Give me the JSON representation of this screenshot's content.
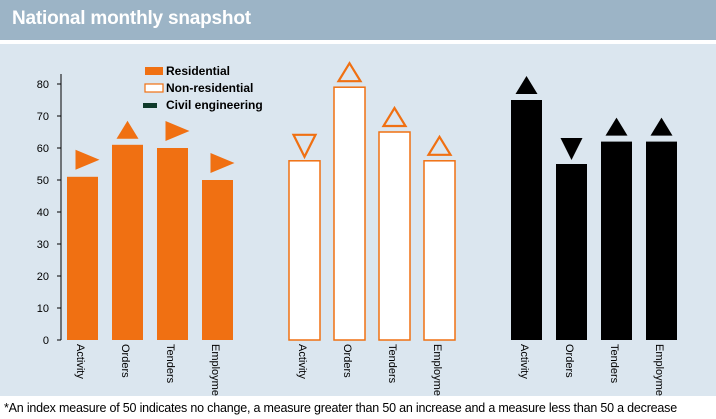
{
  "header": {
    "title": "National monthly snapshot"
  },
  "footnote": "*An index measure of 50 indicates no change, a measure greater than 50 an increase and a measure less than 50 a decrease",
  "colors": {
    "residential": "#f07012",
    "non_residential": "#ffffff",
    "non_residential_outline": "#f07012",
    "civil_engineering": "#000000",
    "civil_engineering_legend": "#0f3a2b",
    "header": "#9cb4c6",
    "panel": "#dbe6ef"
  },
  "chart_data": {
    "type": "bar",
    "categories": [
      "Activity",
      "Orders",
      "Tenders",
      "Employment"
    ],
    "ylim": [
      0,
      80
    ],
    "yticks": [
      0,
      10,
      20,
      30,
      40,
      50,
      60,
      70,
      80
    ],
    "grid": false,
    "legend_position": "top-left",
    "series": [
      {
        "name": "Residential",
        "values": [
          51,
          61,
          60,
          50
        ],
        "indicators": [
          "flat",
          "up",
          "flat",
          "flat"
        ]
      },
      {
        "name": "Non-residential",
        "values": [
          56,
          79,
          65,
          56
        ],
        "indicators": [
          "down",
          "up",
          "up",
          "up"
        ]
      },
      {
        "name": "Civil engineering",
        "values": [
          75,
          55,
          62,
          62
        ],
        "indicators": [
          "up",
          "down",
          "up",
          "up"
        ]
      }
    ]
  }
}
